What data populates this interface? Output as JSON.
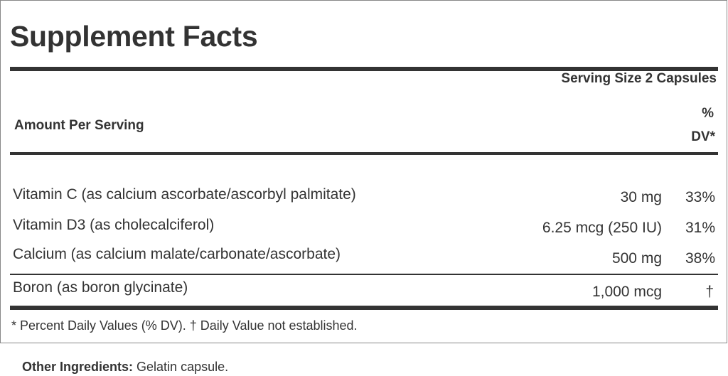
{
  "title": "Supplement Facts",
  "serving_size": "Serving Size 2 Capsules",
  "amount_per_serving": "Amount Per Serving",
  "dv_header_line1": "%",
  "dv_header_line2": "DV*",
  "nutrients": [
    {
      "name": "Vitamin C (as calcium ascorbate/ascorbyl palmitate)",
      "amount": "30 mg",
      "dv": "33%"
    },
    {
      "name": "Vitamin D3 (as cholecalciferol)",
      "amount": "6.25 mcg (250 IU)",
      "dv": "31%"
    },
    {
      "name": "Calcium (as calcium malate/carbonate/ascorbate)",
      "amount": "500 mg",
      "dv": "38%"
    },
    {
      "name": "Boron (as boron glycinate)",
      "amount": "1,000 mcg",
      "dv": "†"
    }
  ],
  "footnote": "* Percent Daily Values (% DV). † Daily Value not established.",
  "other_ingredients": {
    "label": "Other Ingredients:",
    "value": "Gelatin capsule."
  }
}
